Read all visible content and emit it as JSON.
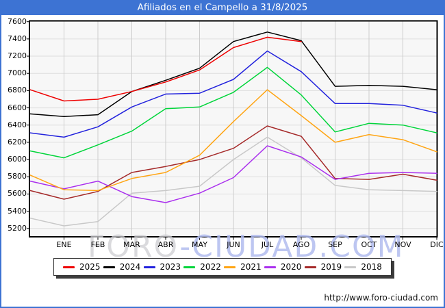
{
  "title": "Afiliados en el Campello a 31/8/2025",
  "watermark": {
    "part1": "FORO",
    "part2": "-CIUDAD.COM"
  },
  "footer": {
    "url": "http://www.foro-ciudad.com"
  },
  "colors": {
    "frame_blue": "#3d73d3",
    "plot_bg": "#f7f7f7",
    "grid_h": "#dedede",
    "grid_v": "#cccccc",
    "axis": "#000000"
  },
  "chart_data": {
    "type": "line",
    "title": "Afiliados en el Campello a 31/8/2025",
    "xlabel": "",
    "ylabel": "",
    "categories": [
      "ENE",
      "FEB",
      "MAR",
      "ABR",
      "MAY",
      "JUN",
      "JUL",
      "AGO",
      "SEP",
      "OCT",
      "NOV",
      "DIC"
    ],
    "y_ticks": [
      7600,
      7400,
      7200,
      7000,
      6800,
      6600,
      6400,
      6200,
      6000,
      5800,
      5600,
      5400,
      5200
    ],
    "ylim": [
      5105,
      7600
    ],
    "grid": true,
    "legend_position": "bottom",
    "note": "Each series starts with a lead-in point on the left axis (previous December value) before ENE. 2025 series ends at AGO.",
    "series": [
      {
        "name": "2025",
        "color": "#ee0000",
        "lead_in": 6810,
        "values": [
          6680,
          6700,
          6790,
          6900,
          7040,
          7300,
          7420,
          7370
        ]
      },
      {
        "name": "2024",
        "color": "#000000",
        "lead_in": 6530,
        "values": [
          6500,
          6520,
          6790,
          6920,
          7060,
          7370,
          7480,
          7380,
          6850,
          6860,
          6850,
          6810
        ]
      },
      {
        "name": "2023",
        "color": "#2323dd",
        "lead_in": 6310,
        "values": [
          6260,
          6380,
          6610,
          6760,
          6770,
          6930,
          7260,
          7020,
          6650,
          6650,
          6630,
          6540
        ]
      },
      {
        "name": "2022",
        "color": "#00d53a",
        "lead_in": 6100,
        "values": [
          6020,
          6170,
          6330,
          6590,
          6610,
          6780,
          7070,
          6750,
          6320,
          6420,
          6400,
          6310
        ]
      },
      {
        "name": "2021",
        "color": "#ffa514",
        "lead_in": 5820,
        "values": [
          5650,
          5640,
          5780,
          5850,
          6050,
          6440,
          6810,
          6510,
          6200,
          6290,
          6230,
          6090
        ]
      },
      {
        "name": "2020",
        "color": "#aa30ee",
        "lead_in": 5750,
        "values": [
          5660,
          5750,
          5570,
          5500,
          5610,
          5790,
          6160,
          6030,
          5770,
          5840,
          5850,
          5840
        ]
      },
      {
        "name": "2019",
        "color": "#a52a2a",
        "lead_in": 5640,
        "values": [
          5540,
          5630,
          5850,
          5920,
          6000,
          6130,
          6390,
          6270,
          5780,
          5770,
          5830,
          5760
        ]
      },
      {
        "name": "2018",
        "color": "#c8c8c8",
        "lead_in": 5320,
        "values": [
          5230,
          5280,
          5610,
          5640,
          5690,
          6000,
          6260,
          6020,
          5700,
          5650,
          5640,
          5630
        ]
      }
    ]
  }
}
